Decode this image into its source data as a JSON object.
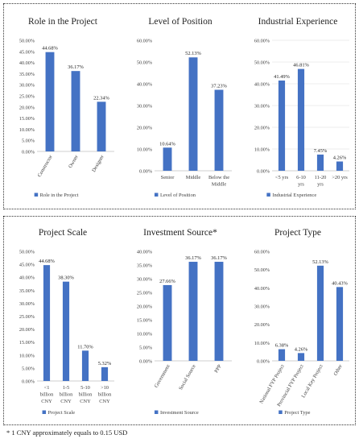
{
  "colors": {
    "bar": "#4472c4",
    "grid": "#d9d9d9",
    "axis": "#bfbfbf",
    "text": "#404040"
  },
  "footnote": "* 1 CNY approximately equals to 0.15 USD",
  "chart_data": [
    {
      "type": "bar",
      "title": "Role in the Project",
      "categories": [
        [
          "Constructor"
        ],
        [
          "Owner"
        ],
        [
          "Designer"
        ]
      ],
      "label_style": "rotated",
      "values": [
        44.68,
        36.17,
        22.34
      ],
      "value_labels": [
        "44.68%",
        "36.17%",
        "22.34%"
      ],
      "yticks": [
        "0.00%",
        "5.00%",
        "10.00%",
        "15.00%",
        "20.00%",
        "25.00%",
        "30.00%",
        "35.00%",
        "40.00%",
        "45.00%",
        "50.00%"
      ],
      "ylim": [
        0,
        50
      ],
      "legend": "Role in the Project",
      "legend_position": "bottom",
      "grid": false
    },
    {
      "type": "bar",
      "title": "Level of Position",
      "categories": [
        [
          "Senior"
        ],
        [
          "Middle"
        ],
        [
          "Below the",
          "Middle"
        ]
      ],
      "label_style": "horizontal",
      "values": [
        10.64,
        52.13,
        37.23
      ],
      "value_labels": [
        "10.64%",
        "52.13%",
        "37.23%"
      ],
      "yticks": [
        "0.00%",
        "10.00%",
        "20.00%",
        "30.00%",
        "40.00%",
        "50.00%",
        "60.00%"
      ],
      "ylim": [
        0,
        60
      ],
      "legend": "Level of Position",
      "legend_position": "bottom",
      "grid": false
    },
    {
      "type": "bar",
      "title": "Industrial Experience",
      "categories": [
        [
          "<5 yrs"
        ],
        [
          "6-10",
          "yrs"
        ],
        [
          "11-20",
          "yrs"
        ],
        [
          ">20 yrs"
        ]
      ],
      "label_style": "horizontal",
      "values": [
        41.49,
        46.81,
        7.45,
        4.26
      ],
      "value_labels": [
        "41.49%",
        "46.81%",
        "7.45%",
        "4.26%"
      ],
      "yticks": [
        "0.00%",
        "10.00%",
        "20.00%",
        "30.00%",
        "40.00%",
        "50.00%",
        "60.00%"
      ],
      "ylim": [
        0,
        60
      ],
      "legend": "Industrial Experience",
      "legend_position": "bottom",
      "grid": true
    },
    {
      "type": "bar",
      "title": "Project Scale",
      "categories": [
        [
          "<1",
          "billion",
          "CNY"
        ],
        [
          "1-5",
          "billion",
          "CNY"
        ],
        [
          "5-10",
          "billion",
          "CNY"
        ],
        [
          ">10",
          "billion",
          "CNY"
        ]
      ],
      "label_style": "horizontal",
      "values": [
        44.68,
        38.3,
        11.7,
        5.32
      ],
      "value_labels": [
        "44.68%",
        "38.30%",
        "11.70%",
        "5.32%"
      ],
      "yticks": [
        "0.00%",
        "5.00%",
        "10.00%",
        "15.00%",
        "20.00%",
        "25.00%",
        "30.00%",
        "35.00%",
        "40.00%",
        "45.00%",
        "50.00%"
      ],
      "ylim": [
        0,
        50
      ],
      "legend": "Project Scale",
      "legend_position": "bottom",
      "grid": false
    },
    {
      "type": "bar",
      "title": "Investment Source*",
      "categories": [
        [
          "Government"
        ],
        [
          "Social Source"
        ],
        [
          "PPP"
        ]
      ],
      "label_style": "rotated",
      "values": [
        27.66,
        36.17,
        36.17
      ],
      "value_labels": [
        "27.66%",
        "36.17%",
        "36.17%"
      ],
      "yticks": [
        "0.00%",
        "5.00%",
        "10.00%",
        "15.00%",
        "20.00%",
        "25.00%",
        "30.00%",
        "35.00%",
        "40.00%"
      ],
      "ylim": [
        0,
        40
      ],
      "legend": "Investment Source",
      "legend_position": "bottom",
      "grid": false
    },
    {
      "type": "bar",
      "title": "Project Type",
      "categories": [
        [
          "National FYP Project"
        ],
        [
          "Provincial FYP Project"
        ],
        [
          "Local Key Project"
        ],
        [
          "Other"
        ]
      ],
      "label_style": "rotated",
      "values": [
        6.38,
        4.26,
        52.13,
        40.43
      ],
      "value_labels": [
        "6.38%",
        "4.26%",
        "52.13%",
        "40.43%"
      ],
      "yticks": [
        "0.00%",
        "10.00%",
        "20.00%",
        "30.00%",
        "40.00%",
        "50.00%",
        "60.00%"
      ],
      "ylim": [
        0,
        60
      ],
      "legend": "Project Type",
      "legend_position": "bottom",
      "grid": false
    }
  ]
}
